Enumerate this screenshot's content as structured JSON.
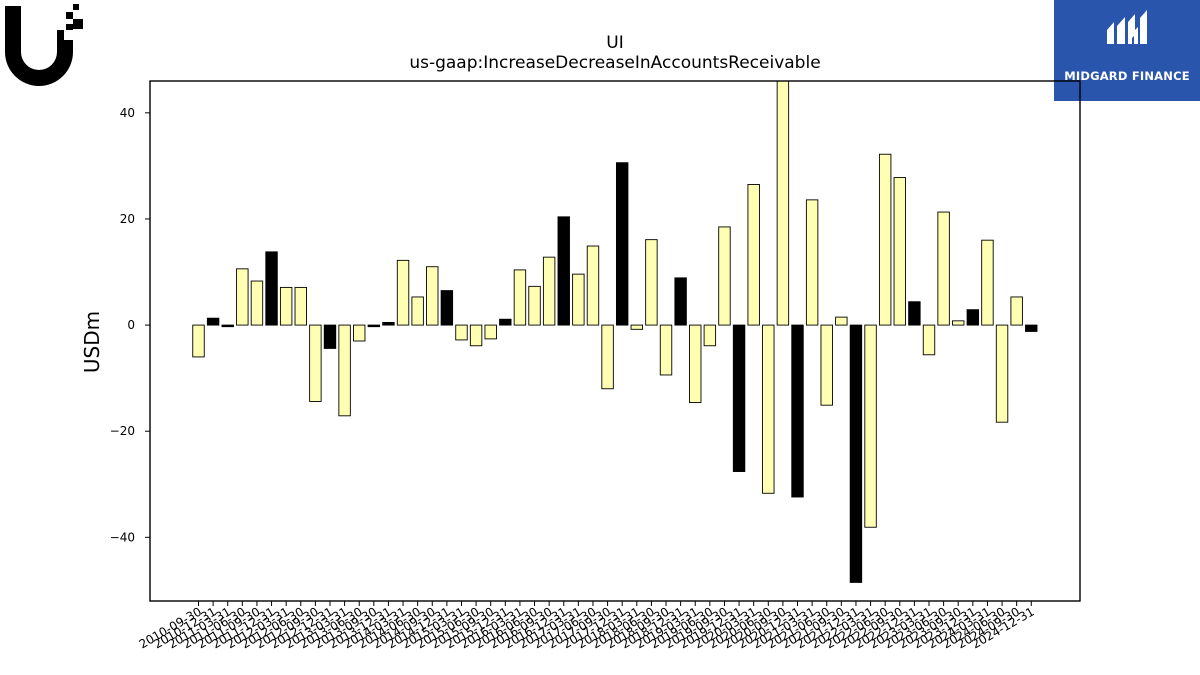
{
  "brand": {
    "name": "Midgard Finance",
    "badge_text": "MIDGARD FINANCE",
    "badge_color": "#2a55ad",
    "corner_logo_icon": "ubiquiti-u-logo"
  },
  "chart_data": {
    "type": "bar",
    "title": "UI",
    "subtitle": "us-gaap:IncreaseDecreaseInAccountsReceivable",
    "ylabel": "USDm",
    "xlabel": "",
    "ylim": [
      -52,
      46
    ],
    "yticks": [
      -40,
      -20,
      0,
      20,
      40
    ],
    "ytick_labels": [
      "−40",
      "−20",
      "0",
      "20",
      "40"
    ],
    "grid": false,
    "colors": {
      "quarterly": "#ffffb3",
      "annual": "#000000",
      "edge": "#000000"
    },
    "bars": [
      {
        "x": "2010-09-30",
        "value": -6.0,
        "kind": "quarterly"
      },
      {
        "x": "2010-12-31",
        "value": 1.3,
        "kind": "annual"
      },
      {
        "x": "2011-03-31",
        "value": -0.3,
        "kind": "annual"
      },
      {
        "x": "2011-06-30",
        "value": 10.6,
        "kind": "quarterly"
      },
      {
        "x": "2011-09-30",
        "value": 8.3,
        "kind": "quarterly"
      },
      {
        "x": "2011-12-31",
        "value": 13.8,
        "kind": "annual"
      },
      {
        "x": "2012-03-31",
        "value": 7.1,
        "kind": "quarterly"
      },
      {
        "x": "2012-06-30",
        "value": 7.1,
        "kind": "quarterly"
      },
      {
        "x": "2012-09-30",
        "value": -14.4,
        "kind": "quarterly"
      },
      {
        "x": "2012-12-31",
        "value": -4.4,
        "kind": "annual"
      },
      {
        "x": "2013-03-31",
        "value": -17.1,
        "kind": "quarterly"
      },
      {
        "x": "2013-06-30",
        "value": -3.0,
        "kind": "quarterly"
      },
      {
        "x": "2013-09-30",
        "value": -0.3,
        "kind": "annual"
      },
      {
        "x": "2013-12-31",
        "value": 0.5,
        "kind": "annual"
      },
      {
        "x": "2014-03-31",
        "value": 12.2,
        "kind": "quarterly"
      },
      {
        "x": "2014-06-30",
        "value": 5.3,
        "kind": "quarterly"
      },
      {
        "x": "2014-09-30",
        "value": 11.0,
        "kind": "quarterly"
      },
      {
        "x": "2014-12-31",
        "value": 6.5,
        "kind": "annual"
      },
      {
        "x": "2015-03-31",
        "value": -2.8,
        "kind": "quarterly"
      },
      {
        "x": "2015-06-30",
        "value": -3.9,
        "kind": "quarterly"
      },
      {
        "x": "2015-09-30",
        "value": -2.6,
        "kind": "quarterly"
      },
      {
        "x": "2015-12-31",
        "value": 1.1,
        "kind": "annual"
      },
      {
        "x": "2016-03-31",
        "value": 10.4,
        "kind": "quarterly"
      },
      {
        "x": "2016-06-30",
        "value": 7.3,
        "kind": "quarterly"
      },
      {
        "x": "2016-09-30",
        "value": 12.8,
        "kind": "quarterly"
      },
      {
        "x": "2016-12-31",
        "value": 20.4,
        "kind": "annual"
      },
      {
        "x": "2017-03-31",
        "value": 9.6,
        "kind": "quarterly"
      },
      {
        "x": "2017-06-30",
        "value": 14.9,
        "kind": "quarterly"
      },
      {
        "x": "2017-09-30",
        "value": -12.0,
        "kind": "quarterly"
      },
      {
        "x": "2017-12-31",
        "value": 30.6,
        "kind": "annual"
      },
      {
        "x": "2018-03-31",
        "value": -0.8,
        "kind": "quarterly"
      },
      {
        "x": "2018-06-30",
        "value": 16.1,
        "kind": "quarterly"
      },
      {
        "x": "2018-09-30",
        "value": -9.4,
        "kind": "quarterly"
      },
      {
        "x": "2018-12-31",
        "value": 8.9,
        "kind": "annual"
      },
      {
        "x": "2019-03-31",
        "value": -14.6,
        "kind": "quarterly"
      },
      {
        "x": "2019-06-30",
        "value": -3.9,
        "kind": "quarterly"
      },
      {
        "x": "2019-09-30",
        "value": 18.5,
        "kind": "quarterly"
      },
      {
        "x": "2019-12-31",
        "value": -27.6,
        "kind": "annual"
      },
      {
        "x": "2020-03-31",
        "value": 26.5,
        "kind": "quarterly"
      },
      {
        "x": "2020-06-30",
        "value": -31.7,
        "kind": "quarterly"
      },
      {
        "x": "2020-09-30",
        "value": 46.0,
        "kind": "quarterly"
      },
      {
        "x": "2020-12-31",
        "value": -32.4,
        "kind": "annual"
      },
      {
        "x": "2021-03-31",
        "value": 23.6,
        "kind": "quarterly"
      },
      {
        "x": "2021-06-30",
        "value": -15.1,
        "kind": "quarterly"
      },
      {
        "x": "2021-09-30",
        "value": 1.5,
        "kind": "quarterly"
      },
      {
        "x": "2021-12-31",
        "value": -48.5,
        "kind": "annual"
      },
      {
        "x": "2022-03-31",
        "value": -38.1,
        "kind": "quarterly"
      },
      {
        "x": "2022-06-30",
        "value": 32.2,
        "kind": "quarterly"
      },
      {
        "x": "2022-09-30",
        "value": 27.8,
        "kind": "quarterly"
      },
      {
        "x": "2022-12-31",
        "value": 4.4,
        "kind": "annual"
      },
      {
        "x": "2023-03-31",
        "value": -5.6,
        "kind": "quarterly"
      },
      {
        "x": "2023-06-30",
        "value": 21.3,
        "kind": "quarterly"
      },
      {
        "x": "2023-09-30",
        "value": 0.8,
        "kind": "quarterly"
      },
      {
        "x": "2023-12-31",
        "value": 2.9,
        "kind": "annual"
      },
      {
        "x": "2024-03-31",
        "value": 16.0,
        "kind": "quarterly"
      },
      {
        "x": "2024-06-30",
        "value": -18.3,
        "kind": "quarterly"
      },
      {
        "x": "2024-09-30",
        "value": 5.3,
        "kind": "quarterly"
      },
      {
        "x": "2024-12-31",
        "value": -1.2,
        "kind": "annual"
      }
    ]
  }
}
